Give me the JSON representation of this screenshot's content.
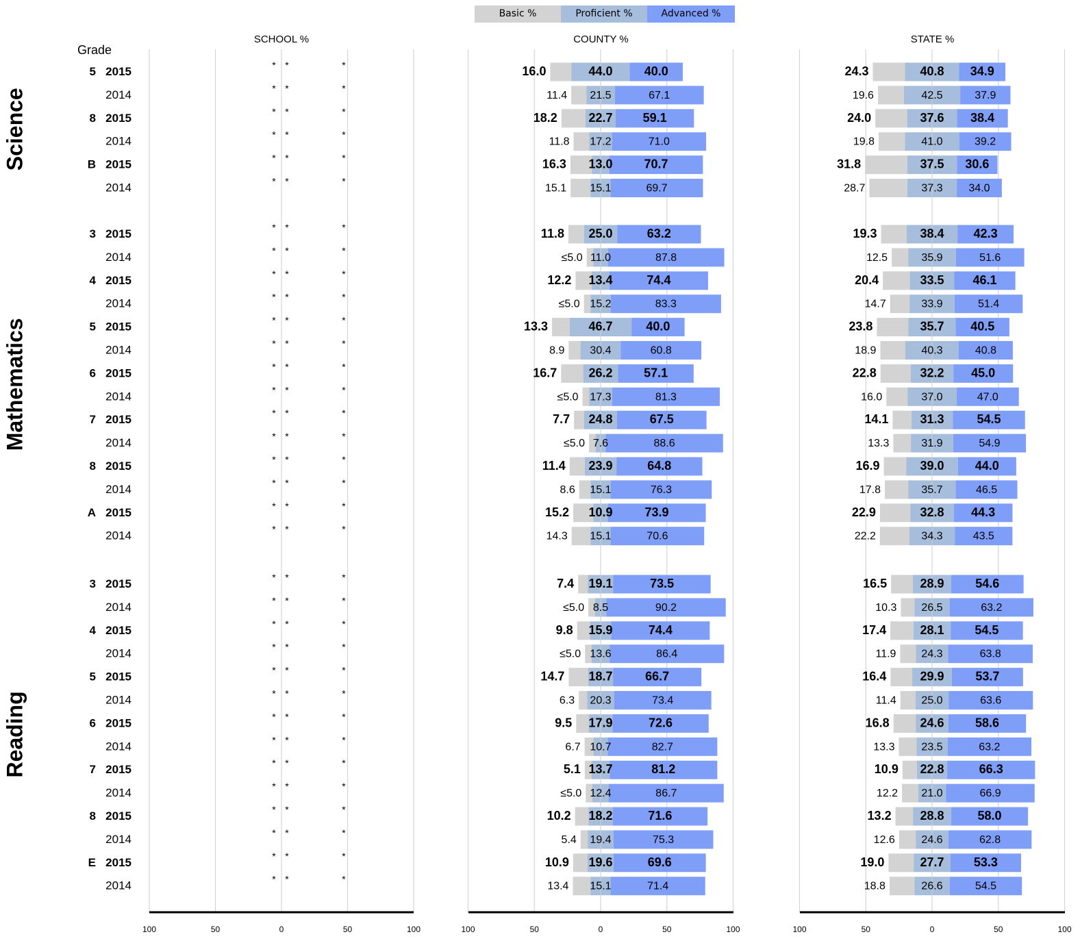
{
  "legend": [
    {
      "label": "Basic %",
      "color": "#d3d3d3"
    },
    {
      "label": "Proficient %",
      "color": "#a6bddb"
    },
    {
      "label": "Advanced %",
      "color": "#7f9ef7"
    }
  ],
  "chart_data": {
    "type": "bar",
    "subtype": "diverging-stacked-horizontal",
    "panel_titles": [
      "SCHOOL %",
      "COUNTY %",
      "STATE %"
    ],
    "grade_header": "Grade",
    "x_ticks": [
      "100",
      "50",
      "0",
      "50",
      "100"
    ],
    "xlim": [
      -100,
      100
    ],
    "suppressed_mark": "*",
    "less_than_label": "≤5.0",
    "series": [
      "Basic %",
      "Proficient %",
      "Advanced %"
    ],
    "subjects": [
      {
        "name": "Science",
        "rows": [
          {
            "grade": "5",
            "year": "2015",
            "county": [
              16.0,
              44.0,
              40.0
            ],
            "state": [
              24.3,
              40.8,
              34.9
            ]
          },
          {
            "grade": "",
            "year": "2014",
            "county": [
              11.4,
              21.5,
              67.1
            ],
            "state": [
              19.6,
              42.5,
              37.9
            ]
          },
          {
            "grade": "8",
            "year": "2015",
            "county": [
              18.2,
              22.7,
              59.1
            ],
            "state": [
              24.0,
              37.6,
              38.4
            ]
          },
          {
            "grade": "",
            "year": "2014",
            "county": [
              11.8,
              17.2,
              71.0
            ],
            "state": [
              19.8,
              41.0,
              39.2
            ]
          },
          {
            "grade": "B",
            "year": "2015",
            "county": [
              16.3,
              13.0,
              70.7
            ],
            "state": [
              31.8,
              37.5,
              30.6
            ]
          },
          {
            "grade": "",
            "year": "2014",
            "county": [
              15.1,
              15.1,
              69.7
            ],
            "state": [
              28.7,
              37.3,
              34.0
            ]
          }
        ]
      },
      {
        "name": "Mathematics",
        "rows": [
          {
            "grade": "3",
            "year": "2015",
            "county": [
              11.8,
              25.0,
              63.2
            ],
            "state": [
              19.3,
              38.4,
              42.3
            ]
          },
          {
            "grade": "",
            "year": "2014",
            "county": [
              "≤5.0",
              11.0,
              87.8
            ],
            "state": [
              12.5,
              35.9,
              51.6
            ]
          },
          {
            "grade": "4",
            "year": "2015",
            "county": [
              12.2,
              13.4,
              74.4
            ],
            "state": [
              20.4,
              33.5,
              46.1
            ]
          },
          {
            "grade": "",
            "year": "2014",
            "county": [
              "≤5.0",
              15.2,
              83.3
            ],
            "state": [
              14.7,
              33.9,
              51.4
            ]
          },
          {
            "grade": "5",
            "year": "2015",
            "county": [
              13.3,
              46.7,
              40.0
            ],
            "state": [
              23.8,
              35.7,
              40.5
            ]
          },
          {
            "grade": "",
            "year": "2014",
            "county": [
              8.9,
              30.4,
              60.8
            ],
            "state": [
              18.9,
              40.3,
              40.8
            ]
          },
          {
            "grade": "6",
            "year": "2015",
            "county": [
              16.7,
              26.2,
              57.1
            ],
            "state": [
              22.8,
              32.2,
              45.0
            ]
          },
          {
            "grade": "",
            "year": "2014",
            "county": [
              "≤5.0",
              17.3,
              81.3
            ],
            "state": [
              16.0,
              37.0,
              47.0
            ]
          },
          {
            "grade": "7",
            "year": "2015",
            "county": [
              7.7,
              24.8,
              67.5
            ],
            "state": [
              14.1,
              31.3,
              54.5
            ]
          },
          {
            "grade": "",
            "year": "2014",
            "county": [
              "≤5.0",
              7.6,
              88.6
            ],
            "state": [
              13.3,
              31.9,
              54.9
            ]
          },
          {
            "grade": "8",
            "year": "2015",
            "county": [
              11.4,
              23.9,
              64.8
            ],
            "state": [
              16.9,
              39.0,
              44.0
            ]
          },
          {
            "grade": "",
            "year": "2014",
            "county": [
              8.6,
              15.1,
              76.3
            ],
            "state": [
              17.8,
              35.7,
              46.5
            ]
          },
          {
            "grade": "A",
            "year": "2015",
            "county": [
              15.2,
              10.9,
              73.9
            ],
            "state": [
              22.9,
              32.8,
              44.3
            ]
          },
          {
            "grade": "",
            "year": "2014",
            "county": [
              14.3,
              15.1,
              70.6
            ],
            "state": [
              22.2,
              34.3,
              43.5
            ]
          }
        ]
      },
      {
        "name": "Reading",
        "rows": [
          {
            "grade": "3",
            "year": "2015",
            "county": [
              7.4,
              19.1,
              73.5
            ],
            "state": [
              16.5,
              28.9,
              54.6
            ]
          },
          {
            "grade": "",
            "year": "2014",
            "county": [
              "≤5.0",
              8.5,
              90.2
            ],
            "state": [
              10.3,
              26.5,
              63.2
            ]
          },
          {
            "grade": "4",
            "year": "2015",
            "county": [
              9.8,
              15.9,
              74.4
            ],
            "state": [
              17.4,
              28.1,
              54.5
            ]
          },
          {
            "grade": "",
            "year": "2014",
            "county": [
              "≤5.0",
              13.6,
              86.4
            ],
            "state": [
              11.9,
              24.3,
              63.8
            ]
          },
          {
            "grade": "5",
            "year": "2015",
            "county": [
              14.7,
              18.7,
              66.7
            ],
            "state": [
              16.4,
              29.9,
              53.7
            ]
          },
          {
            "grade": "",
            "year": "2014",
            "county": [
              6.3,
              20.3,
              73.4
            ],
            "state": [
              11.4,
              25.0,
              63.6
            ]
          },
          {
            "grade": "6",
            "year": "2015",
            "county": [
              9.5,
              17.9,
              72.6
            ],
            "state": [
              16.8,
              24.6,
              58.6
            ]
          },
          {
            "grade": "",
            "year": "2014",
            "county": [
              6.7,
              10.7,
              82.7
            ],
            "state": [
              13.3,
              23.5,
              63.2
            ]
          },
          {
            "grade": "7",
            "year": "2015",
            "county": [
              5.1,
              13.7,
              81.2
            ],
            "state": [
              10.9,
              22.8,
              66.3
            ]
          },
          {
            "grade": "",
            "year": "2014",
            "county": [
              "≤5.0",
              12.4,
              86.7
            ],
            "state": [
              12.2,
              21.0,
              66.9
            ]
          },
          {
            "grade": "8",
            "year": "2015",
            "county": [
              10.2,
              18.2,
              71.6
            ],
            "state": [
              13.2,
              28.8,
              58.0
            ]
          },
          {
            "grade": "",
            "year": "2014",
            "county": [
              5.4,
              19.4,
              75.3
            ],
            "state": [
              12.6,
              24.6,
              62.8
            ]
          },
          {
            "grade": "E",
            "year": "2015",
            "county": [
              10.9,
              19.6,
              69.6
            ],
            "state": [
              19.0,
              27.7,
              53.3
            ]
          },
          {
            "grade": "",
            "year": "2014",
            "county": [
              13.4,
              15.1,
              71.4
            ],
            "state": [
              18.8,
              26.6,
              54.5
            ]
          }
        ]
      }
    ]
  }
}
